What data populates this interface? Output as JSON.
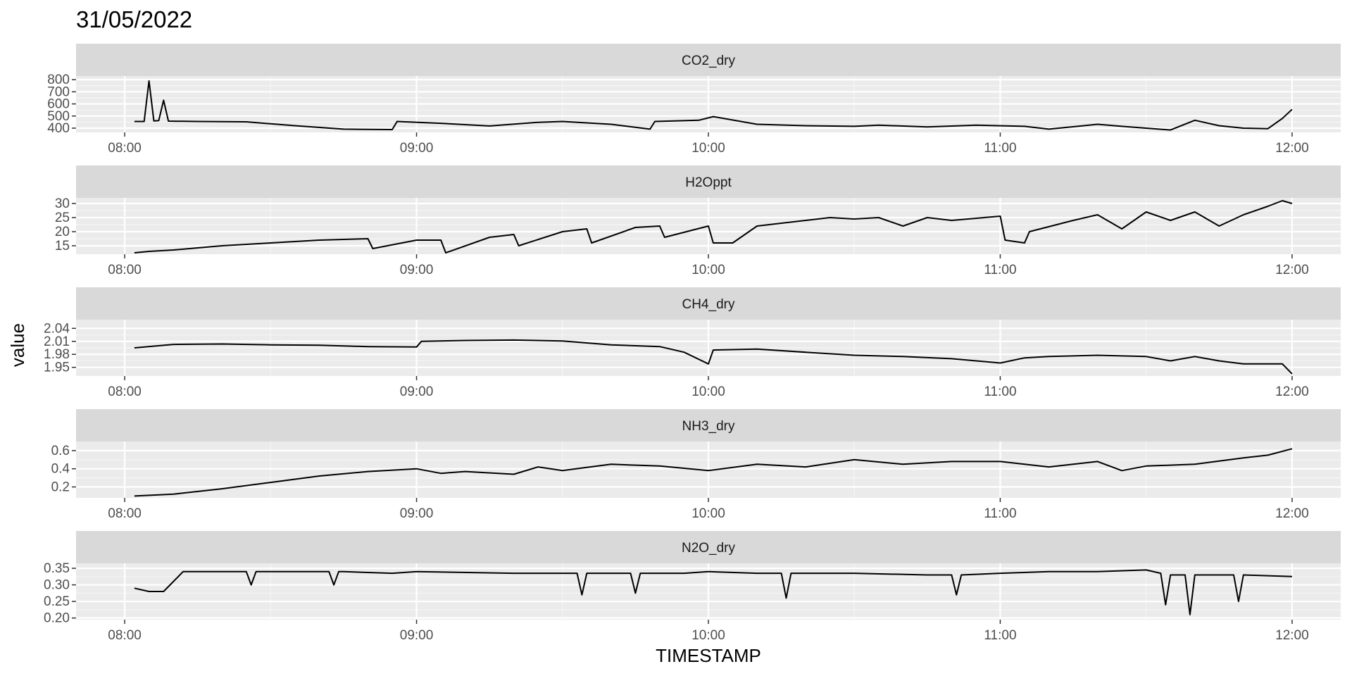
{
  "chart_data": {
    "type": "line",
    "title": "31/05/2022",
    "xlabel": "TIMESTAMP",
    "ylabel": "value",
    "x_range": [
      "07:50",
      "12:10"
    ],
    "x_ticks": [
      "08:00",
      "09:00",
      "10:00",
      "11:00",
      "12:00"
    ],
    "grid": true,
    "background": "#ebebeb",
    "strip_color": "#d9d9d9",
    "line_color": "#000000",
    "panels": [
      {
        "name": "CO2_dry",
        "ylim": [
          365,
          830
        ],
        "yticks": [
          400,
          500,
          600,
          700,
          800
        ],
        "ytick_labels": [
          "400",
          "500",
          "600",
          "700",
          "800"
        ],
        "series": {
          "x": [
            "08:02",
            "08:04",
            "08:05",
            "08:06",
            "08:07",
            "08:08",
            "08:09",
            "08:15",
            "08:25",
            "08:35",
            "08:45",
            "08:55",
            "08:56",
            "09:05",
            "09:15",
            "09:25",
            "09:30",
            "09:40",
            "09:48",
            "09:49",
            "09:58",
            "10:01",
            "10:10",
            "10:20",
            "10:30",
            "10:35",
            "10:45",
            "10:55",
            "11:05",
            "11:10",
            "11:20",
            "11:25",
            "11:35",
            "11:40",
            "11:45",
            "11:50",
            "11:55",
            "11:58",
            "12:00"
          ],
          "y": [
            455,
            455,
            790,
            460,
            462,
            630,
            458,
            455,
            452,
            420,
            392,
            388,
            455,
            440,
            418,
            448,
            455,
            432,
            392,
            455,
            465,
            495,
            432,
            420,
            415,
            425,
            410,
            425,
            415,
            392,
            432,
            415,
            385,
            465,
            420,
            400,
            395,
            480,
            555
          ]
        }
      },
      {
        "name": "H2Oppt",
        "ylim": [
          12,
          32
        ],
        "yticks": [
          15,
          20,
          25,
          30
        ],
        "ytick_labels": [
          "15",
          "20",
          "25",
          "30"
        ],
        "series": {
          "x": [
            "08:02",
            "08:05",
            "08:10",
            "08:20",
            "08:30",
            "08:40",
            "08:50",
            "08:51",
            "09:00",
            "09:05",
            "09:06",
            "09:15",
            "09:20",
            "09:21",
            "09:30",
            "09:35",
            "09:36",
            "09:45",
            "09:50",
            "09:51",
            "10:00",
            "10:01",
            "10:05",
            "10:10",
            "10:20",
            "10:25",
            "10:30",
            "10:35",
            "10:40",
            "10:45",
            "10:50",
            "11:00",
            "11:01",
            "11:05",
            "11:06",
            "11:15",
            "11:20",
            "11:25",
            "11:30",
            "11:35",
            "11:40",
            "11:45",
            "11:50",
            "11:55",
            "11:58",
            "12:00"
          ],
          "y": [
            12.5,
            13,
            13.5,
            15,
            16,
            17,
            17.5,
            14,
            17,
            17,
            12.5,
            18,
            19,
            15,
            20,
            21,
            16,
            21.5,
            22,
            18,
            22,
            16,
            16,
            22,
            24,
            25,
            24.5,
            25,
            22,
            25,
            24,
            25.5,
            17,
            16,
            20,
            24,
            26,
            21,
            27,
            24,
            27,
            22,
            26,
            29,
            31,
            30
          ]
        }
      },
      {
        "name": "CH4_dry",
        "ylim": [
          1.93,
          2.06
        ],
        "yticks": [
          1.95,
          1.98,
          2.01,
          2.04
        ],
        "ytick_labels": [
          "1.95",
          "1.98",
          "2.01",
          "2.04"
        ],
        "series": {
          "x": [
            "08:02",
            "08:10",
            "08:20",
            "08:30",
            "08:40",
            "08:50",
            "09:00",
            "09:01",
            "09:10",
            "09:20",
            "09:30",
            "09:40",
            "09:50",
            "09:55",
            "10:00",
            "10:01",
            "10:10",
            "10:20",
            "10:30",
            "10:40",
            "10:50",
            "11:00",
            "11:05",
            "11:10",
            "11:20",
            "11:30",
            "11:35",
            "11:40",
            "11:45",
            "11:50",
            "11:55",
            "11:58",
            "12:00"
          ],
          "y": [
            1.995,
            2.003,
            2.004,
            2.002,
            2.001,
            1.998,
            1.997,
            2.01,
            2.012,
            2.013,
            2.011,
            2.002,
            1.998,
            1.985,
            1.958,
            1.99,
            1.992,
            1.985,
            1.978,
            1.975,
            1.97,
            1.96,
            1.972,
            1.975,
            1.978,
            1.975,
            1.965,
            1.975,
            1.965,
            1.958,
            1.958,
            1.958,
            1.935
          ]
        }
      },
      {
        "name": "NH3_dry",
        "ylim": [
          0.08,
          0.7
        ],
        "yticks": [
          0.2,
          0.4,
          0.6
        ],
        "ytick_labels": [
          "0.2",
          "0.4",
          "0.6"
        ],
        "series": {
          "x": [
            "08:02",
            "08:10",
            "08:20",
            "08:30",
            "08:40",
            "08:50",
            "09:00",
            "09:05",
            "09:10",
            "09:20",
            "09:25",
            "09:30",
            "09:40",
            "09:50",
            "10:00",
            "10:10",
            "10:20",
            "10:30",
            "10:40",
            "10:50",
            "11:00",
            "11:10",
            "11:20",
            "11:25",
            "11:30",
            "11:40",
            "11:50",
            "11:55",
            "12:00"
          ],
          "y": [
            0.1,
            0.12,
            0.18,
            0.25,
            0.32,
            0.37,
            0.4,
            0.35,
            0.37,
            0.34,
            0.42,
            0.38,
            0.45,
            0.43,
            0.38,
            0.45,
            0.42,
            0.5,
            0.45,
            0.48,
            0.48,
            0.42,
            0.48,
            0.38,
            0.43,
            0.45,
            0.52,
            0.55,
            0.62
          ]
        }
      },
      {
        "name": "N2O_dry",
        "ylim": [
          0.195,
          0.365
        ],
        "yticks": [
          0.2,
          0.25,
          0.3,
          0.35
        ],
        "ytick_labels": [
          "0.20",
          "0.25",
          "0.30",
          "0.35"
        ],
        "series": {
          "x": [
            "08:02",
            "08:05",
            "08:08",
            "08:12",
            "08:25",
            "08:26",
            "08:27",
            "08:35",
            "08:40",
            "08:42",
            "08:43",
            "08:44",
            "08:45",
            "08:55",
            "09:00",
            "09:20",
            "09:30",
            "09:33",
            "09:34",
            "09:35",
            "09:44",
            "09:45",
            "09:46",
            "09:55",
            "10:00",
            "10:10",
            "10:15",
            "10:16",
            "10:17",
            "10:25",
            "10:30",
            "10:45",
            "10:50",
            "10:51",
            "10:52",
            "11:00",
            "11:10",
            "11:20",
            "11:30",
            "11:33",
            "11:34",
            "11:35",
            "11:38",
            "11:39",
            "11:40",
            "11:45",
            "11:48",
            "11:49",
            "11:50",
            "12:00"
          ],
          "y": [
            0.29,
            0.28,
            0.28,
            0.34,
            0.34,
            0.3,
            0.34,
            0.34,
            0.34,
            0.34,
            0.3,
            0.34,
            0.34,
            0.335,
            0.34,
            0.335,
            0.335,
            0.335,
            0.27,
            0.335,
            0.335,
            0.275,
            0.335,
            0.335,
            0.34,
            0.335,
            0.335,
            0.26,
            0.335,
            0.335,
            0.335,
            0.33,
            0.33,
            0.27,
            0.33,
            0.335,
            0.34,
            0.34,
            0.345,
            0.335,
            0.24,
            0.33,
            0.33,
            0.21,
            0.33,
            0.33,
            0.33,
            0.25,
            0.33,
            0.325
          ]
        }
      }
    ]
  }
}
